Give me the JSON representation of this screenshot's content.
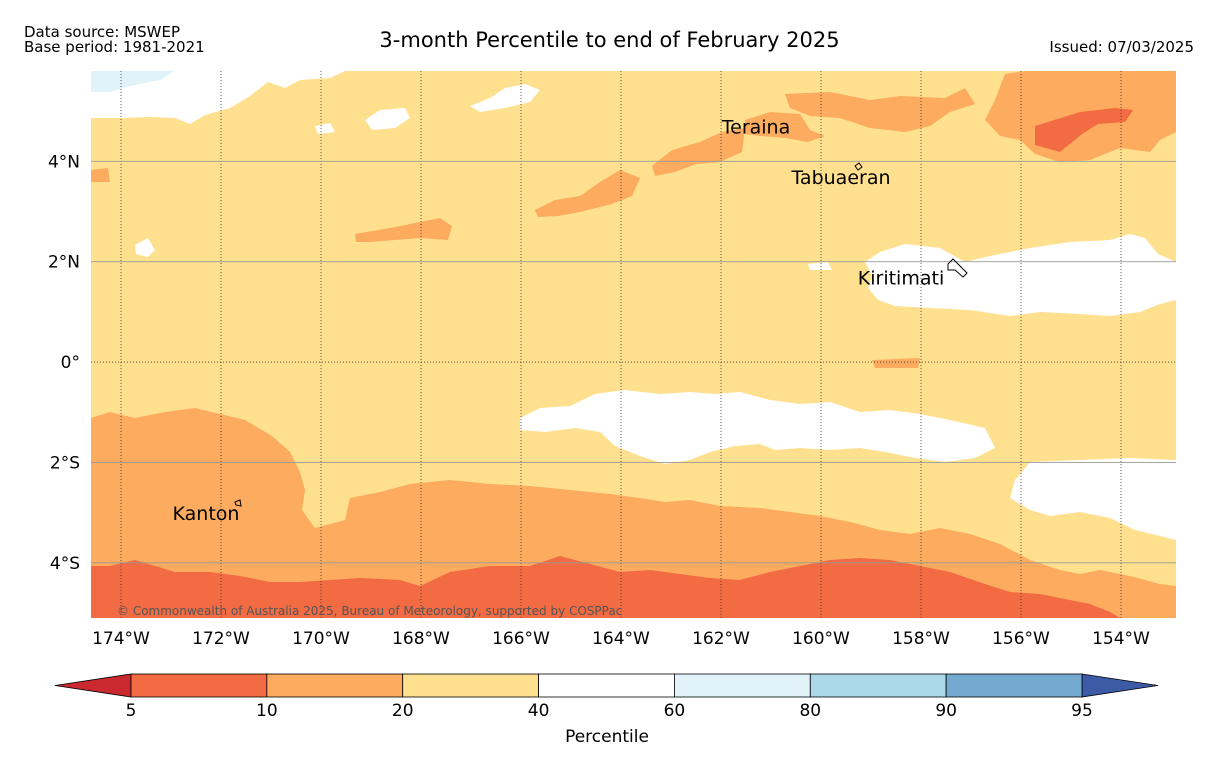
{
  "header": {
    "data_source": "Data source: MSWEP",
    "base_period": "Base period: 1981-2021",
    "title": "3-month Percentile to end of February 2025",
    "issued": "Issued: 07/03/2025"
  },
  "map": {
    "lon_range": [
      -174.6,
      -152.9
    ],
    "lat_range": [
      -5.1,
      5.8
    ],
    "lon_ticks": [
      {
        "value": -174,
        "label": "174°W"
      },
      {
        "value": -172,
        "label": "172°W"
      },
      {
        "value": -170,
        "label": "170°W"
      },
      {
        "value": -168,
        "label": "168°W"
      },
      {
        "value": -166,
        "label": "166°W"
      },
      {
        "value": -164,
        "label": "164°W"
      },
      {
        "value": -162,
        "label": "162°W"
      },
      {
        "value": -160,
        "label": "160°W"
      },
      {
        "value": -158,
        "label": "158°W"
      },
      {
        "value": -156,
        "label": "156°W"
      },
      {
        "value": -154,
        "label": "154°W"
      }
    ],
    "lat_ticks": [
      {
        "value": 4,
        "label": "4°N"
      },
      {
        "value": 2,
        "label": "2°N"
      },
      {
        "value": 0,
        "label": "0°"
      },
      {
        "value": -2,
        "label": "2°S"
      },
      {
        "value": -4,
        "label": "4°S"
      }
    ],
    "places": [
      {
        "name": "Teraina",
        "lon": -161.3,
        "lat": 4.55
      },
      {
        "name": "Tabuaeran",
        "lon": -159.6,
        "lat": 3.55
      },
      {
        "name": "Kiritimati",
        "lon": -158.4,
        "lat": 1.55
      },
      {
        "name": "Kanton",
        "lon": -172.3,
        "lat": -3.15
      }
    ],
    "copyright": "© Commonwealth of Australia 2025, Bureau of Meteorology, supported by COSPPac"
  },
  "colorbar": {
    "label": "Percentile",
    "ticks": [
      "5",
      "10",
      "20",
      "40",
      "60",
      "80",
      "90",
      "95"
    ],
    "colors": {
      "below_5": "#c9292f",
      "p5_10": "#f26b43",
      "p10_20": "#fdab5f",
      "p20_40": "#fee08e",
      "p40_60": "#ffffff",
      "p60_80": "#e1f3f8",
      "p80_90": "#abd9e9",
      "p90_95": "#74a9d0",
      "above_95": "#3c5aa5"
    }
  }
}
